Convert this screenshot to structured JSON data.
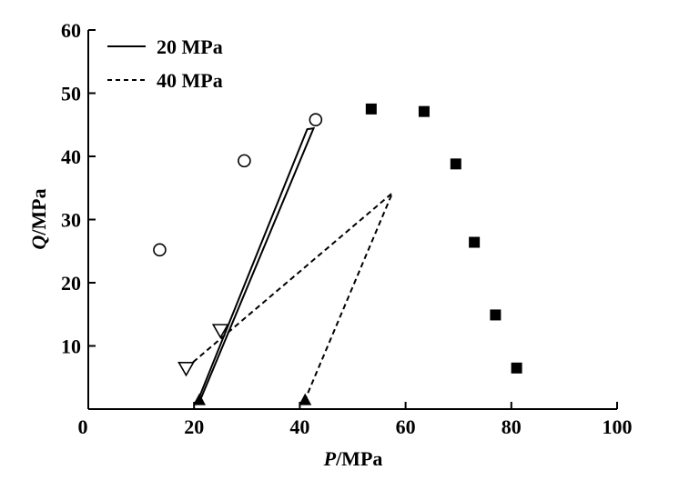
{
  "chart_data": {
    "type": "scatter",
    "title": "",
    "xlabel": {
      "var": "P",
      "unit": "/MPa"
    },
    "ylabel": {
      "var": "Q",
      "unit": "/MPa"
    },
    "xlim": [
      0,
      100
    ],
    "ylim": [
      0,
      60
    ],
    "xticks": [
      0,
      20,
      40,
      60,
      80,
      100
    ],
    "yticks": [
      10,
      20,
      30,
      40,
      50,
      60
    ],
    "grid": false,
    "legend": {
      "placement": "top-left",
      "entries": [
        {
          "label": "20 MPa",
          "style": "solid"
        },
        {
          "label": "40 MPa",
          "style": "dashed"
        }
      ]
    },
    "markers": [
      {
        "shape": "open-circle",
        "points": [
          [
            13.5,
            25.2
          ],
          [
            29.5,
            39.3
          ],
          [
            43.0,
            45.8
          ]
        ]
      },
      {
        "shape": "filled-square",
        "points": [
          [
            53.5,
            47.5
          ],
          [
            63.5,
            47.1
          ],
          [
            69.5,
            38.8
          ],
          [
            73.0,
            26.4
          ],
          [
            77.0,
            14.9
          ],
          [
            81.0,
            6.5
          ]
        ]
      },
      {
        "shape": "open-triangle-down",
        "points": [
          [
            18.5,
            6.5
          ],
          [
            25.0,
            12.5
          ]
        ]
      },
      {
        "shape": "filled-triangle-up",
        "points": [
          [
            21.0,
            1.5
          ],
          [
            41.0,
            1.5
          ]
        ]
      }
    ],
    "series": [
      {
        "name": "20 MPa",
        "style": "solid",
        "x": [
          21.0,
          42.0,
          21.0
        ],
        "y": [
          1.5,
          44.3,
          1.5
        ],
        "closed": true,
        "apex_x": 42.0,
        "apex_offset": 0.6,
        "base_x": [
          20.8,
          21.2
        ]
      },
      {
        "name": "40 MPa",
        "style": "dashed",
        "x": [
          18.5,
          57.5,
          41.0
        ],
        "y": [
          6.5,
          34.2,
          1.5
        ]
      }
    ]
  }
}
